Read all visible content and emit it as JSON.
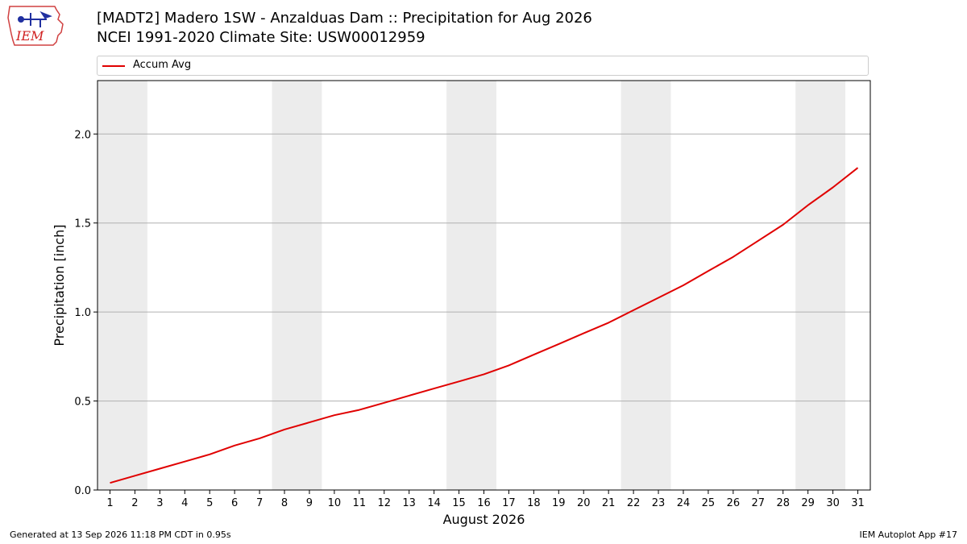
{
  "header": {
    "title_line1": "[MADT2] Madero 1SW - Anzalduas Dam :: Precipitation for Aug 2026",
    "title_line2": "NCEI 1991-2020 Climate Site: USW00012959",
    "logo_text": "IEM"
  },
  "footer": {
    "generated": "Generated at 13 Sep 2026 11:18 PM CDT in 0.95s",
    "app": "IEM Autoplot App #17"
  },
  "colors": {
    "series": "#e00000",
    "weekend_band": "#ececec",
    "grid": "#b0b0b0"
  },
  "chart_data": {
    "type": "line",
    "title": "[MADT2] Madero 1SW - Anzalduas Dam :: Precipitation for Aug 2026",
    "subtitle": "NCEI 1991-2020 Climate Site: USW00012959",
    "xlabel": "August 2026",
    "ylabel": "Precipitation [inch]",
    "x": [
      1,
      2,
      3,
      4,
      5,
      6,
      7,
      8,
      9,
      10,
      11,
      12,
      13,
      14,
      15,
      16,
      17,
      18,
      19,
      20,
      21,
      22,
      23,
      24,
      25,
      26,
      27,
      28,
      29,
      30,
      31
    ],
    "xlim": [
      0.5,
      31.5
    ],
    "ylim": [
      0,
      2.3
    ],
    "yticks": [
      0.0,
      0.5,
      1.0,
      1.5,
      2.0
    ],
    "ytick_labels": [
      "0.0",
      "0.5",
      "1.0",
      "1.5",
      "2.0"
    ],
    "grid": "y",
    "legend_position": "top",
    "weekend_bands": [
      [
        1,
        2
      ],
      [
        8,
        9
      ],
      [
        15,
        16
      ],
      [
        22,
        23
      ],
      [
        29,
        30
      ]
    ],
    "series": [
      {
        "name": "Accum Avg",
        "color": "#e00000",
        "values": [
          0.04,
          0.08,
          0.12,
          0.16,
          0.2,
          0.25,
          0.29,
          0.34,
          0.38,
          0.42,
          0.45,
          0.49,
          0.53,
          0.57,
          0.61,
          0.65,
          0.7,
          0.76,
          0.82,
          0.88,
          0.94,
          1.01,
          1.08,
          1.15,
          1.23,
          1.31,
          1.4,
          1.49,
          1.6,
          1.7,
          1.81
        ]
      }
    ]
  }
}
